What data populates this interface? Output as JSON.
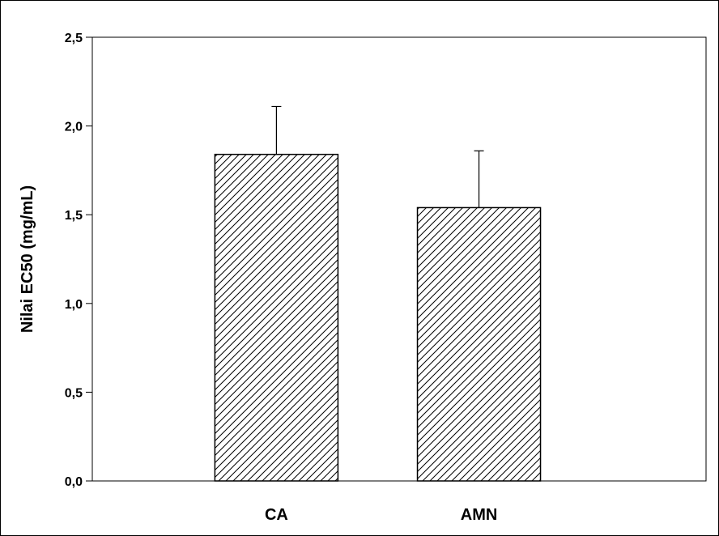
{
  "chart_data": {
    "type": "bar",
    "categories": [
      "CA",
      "AMN"
    ],
    "values": [
      1.84,
      1.54
    ],
    "errors": [
      0.27,
      0.32
    ],
    "ylabel": "Nilai EC50 (mg/mL)",
    "xlabel": "",
    "ylim": [
      0,
      2.5
    ],
    "yticks": [
      0.0,
      0.5,
      1.0,
      1.5,
      2.0,
      2.5
    ],
    "ytick_labels": [
      "0,0",
      "0,5",
      "1,0",
      "1,5",
      "2,0",
      "2,5"
    ],
    "grid": false,
    "bar_fill": "diagonal-hatch",
    "colors": {
      "bar_stroke": "#000000",
      "hatch": "#000000",
      "background": "#ffffff"
    }
  }
}
